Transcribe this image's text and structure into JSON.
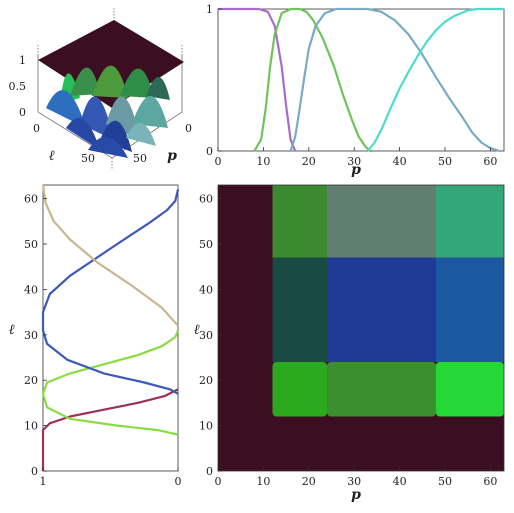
{
  "colors": {
    "dark": "#3c0e22",
    "green_dark": "#2aaa1c",
    "green_mid": "#3b8f2e",
    "green_light": "#24d836",
    "teal_dark": "#194a43",
    "slate": "#607f72",
    "teal": "#33a77a",
    "blue": "#1f3b97",
    "blue_mid": "#1b58a2"
  },
  "chart_data": [
    {
      "id": "surface-3d",
      "type": "surface",
      "x_axis": {
        "label": "p",
        "ticks": [
          "0",
          "50"
        ]
      },
      "y_axis": {
        "label": "ℓ",
        "ticks": [
          "0",
          "50"
        ]
      },
      "z_axis": {
        "ticks": [
          "0",
          "0.5",
          "1"
        ],
        "range": [
          0,
          1
        ]
      }
    },
    {
      "id": "top-right",
      "type": "line",
      "xlabel": "p",
      "ylabel": "",
      "xlim": [
        0,
        63
      ],
      "ylim": [
        0,
        1
      ],
      "xticks": [
        0,
        10,
        20,
        30,
        40,
        50,
        60
      ],
      "yticks": [
        0,
        1
      ],
      "series": [
        {
          "color": "#a86ccc",
          "x": [
            0,
            6,
            9,
            11,
            12.5,
            14,
            15,
            16,
            17
          ],
          "y": [
            1,
            1,
            1,
            0.98,
            0.88,
            0.6,
            0.32,
            0.08,
            0
          ]
        },
        {
          "color": "#6ec35a",
          "x": [
            8,
            9.5,
            10.5,
            11.5,
            12.5,
            14,
            16,
            18,
            19.5,
            21,
            23,
            25.5,
            27.5,
            29.5,
            31,
            32.5,
            33.5,
            34
          ],
          "y": [
            0,
            0.08,
            0.3,
            0.6,
            0.82,
            0.97,
            1,
            1,
            0.98,
            0.92,
            0.8,
            0.6,
            0.4,
            0.22,
            0.1,
            0.03,
            0,
            0
          ]
        },
        {
          "color": "#7aaac6",
          "x": [
            16,
            17,
            18,
            19,
            20,
            21.5,
            23.5,
            26,
            29,
            33,
            36,
            39,
            42,
            45,
            48,
            51,
            54,
            56,
            58,
            60,
            62
          ],
          "y": [
            0,
            0.1,
            0.3,
            0.52,
            0.72,
            0.88,
            0.97,
            1,
            1,
            1,
            0.98,
            0.92,
            0.82,
            0.68,
            0.52,
            0.37,
            0.23,
            0.13,
            0.06,
            0.02,
            0
          ]
        },
        {
          "color": "#4ddccc",
          "x": [
            33,
            34.5,
            36,
            38,
            40,
            42,
            44,
            46,
            48,
            50,
            52,
            55,
            57,
            59,
            61,
            63
          ],
          "y": [
            0,
            0.06,
            0.15,
            0.3,
            0.44,
            0.56,
            0.67,
            0.77,
            0.85,
            0.91,
            0.95,
            0.99,
            1,
            1,
            1,
            1
          ]
        }
      ]
    },
    {
      "id": "bottom-left",
      "type": "line",
      "xlabel": "",
      "ylabel": "ℓ",
      "xlim": [
        1,
        0
      ],
      "ylim": [
        0,
        63
      ],
      "xticks": [
        1,
        0
      ],
      "yticks": [
        0,
        10,
        20,
        30,
        40,
        50,
        60
      ],
      "series": [
        {
          "color": "#a03058",
          "value": [
            1,
            1,
            1,
            0.95,
            0.8,
            0.55,
            0.3,
            0.1,
            0
          ],
          "l": [
            0,
            5,
            9,
            10.5,
            12,
            13.5,
            15,
            16.5,
            18
          ]
        },
        {
          "color": "#88dd44",
          "value": [
            0,
            0.15,
            0.45,
            0.8,
            0.97,
            1,
            0.97,
            0.8,
            0.55,
            0.3,
            0.12,
            0.02,
            0
          ],
          "l": [
            8,
            9,
            10,
            11.5,
            14,
            17,
            19.5,
            21.5,
            23.5,
            25.5,
            27.5,
            29.5,
            31
          ]
        },
        {
          "color": "#3c58b8",
          "value": [
            0,
            0.06,
            0.25,
            0.55,
            0.82,
            0.97,
            1,
            1,
            0.95,
            0.8,
            0.6,
            0.4,
            0.22,
            0.08,
            0.02,
            0
          ],
          "l": [
            17,
            18,
            19.5,
            21.5,
            24.5,
            28,
            31,
            35,
            39,
            43,
            47,
            51,
            54.5,
            57.5,
            59.5,
            62
          ]
        },
        {
          "color": "#c8b78d",
          "value": [
            0,
            0.12,
            0.35,
            0.6,
            0.8,
            0.92,
            0.98,
            1
          ],
          "l": [
            32,
            36,
            41,
            46,
            51,
            55,
            59,
            63
          ]
        }
      ]
    },
    {
      "id": "heatmap",
      "type": "heatmap",
      "xlabel": "p",
      "ylabel": "ℓ",
      "xlim": [
        0,
        63
      ],
      "ylim": [
        0,
        63
      ],
      "xticks": [
        0,
        10,
        20,
        30,
        40,
        50,
        60
      ],
      "yticks": [
        0,
        10,
        20,
        30,
        40,
        50,
        60
      ],
      "blocks": [
        {
          "p": [
            12,
            24
          ],
          "l": [
            12,
            24
          ],
          "color": "#2aaa1c"
        },
        {
          "p": [
            24,
            48
          ],
          "l": [
            12,
            24
          ],
          "color": "#3b8f2e"
        },
        {
          "p": [
            48,
            63
          ],
          "l": [
            12,
            24
          ],
          "color": "#24d836"
        },
        {
          "p": [
            12,
            24
          ],
          "l": [
            24,
            47
          ],
          "color": "#194a43"
        },
        {
          "p": [
            24,
            48
          ],
          "l": [
            24,
            47
          ],
          "color": "#1f3b97"
        },
        {
          "p": [
            48,
            63
          ],
          "l": [
            24,
            47
          ],
          "color": "#1b58a2"
        },
        {
          "p": [
            12,
            24
          ],
          "l": [
            47,
            63
          ],
          "color": "#3b8a30"
        },
        {
          "p": [
            24,
            48
          ],
          "l": [
            47,
            63
          ],
          "color": "#607f72"
        },
        {
          "p": [
            48,
            63
          ],
          "l": [
            47,
            63
          ],
          "color": "#33a77a"
        }
      ]
    }
  ]
}
